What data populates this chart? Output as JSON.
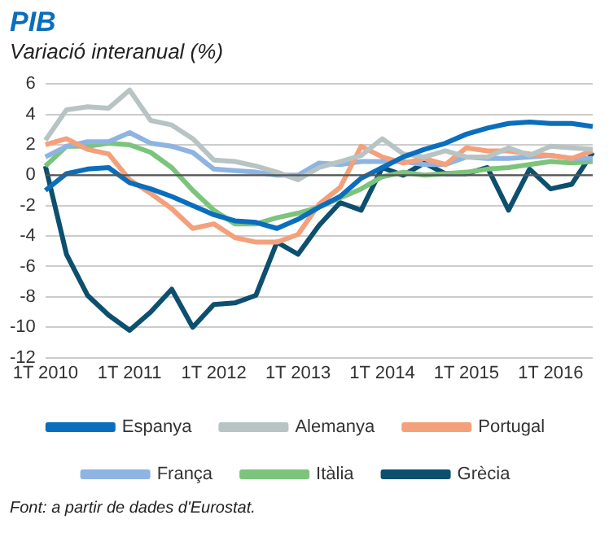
{
  "chart_data": {
    "type": "line",
    "title": "PIB",
    "subtitle": "Variació interanual (%)",
    "categories": [
      "1T 2010",
      null,
      null,
      null,
      "1T 2011",
      null,
      null,
      null,
      "1T 2012",
      null,
      null,
      null,
      "1T 2013",
      null,
      null,
      null,
      "1T 2014",
      null,
      null,
      null,
      "1T 2015",
      null,
      null,
      null,
      "1T 2016",
      null,
      null
    ],
    "series": [
      {
        "name": "Espanya",
        "color": "#0a6ebd",
        "values": [
          -1.0,
          0.1,
          0.4,
          0.5,
          -0.5,
          -0.9,
          -1.4,
          -2.0,
          -2.6,
          -3.0,
          -3.1,
          -3.5,
          -2.9,
          -2.1,
          -1.4,
          -0.2,
          0.5,
          1.2,
          1.7,
          2.1,
          2.7,
          3.1,
          3.4,
          3.5,
          3.4,
          3.4,
          3.2
        ]
      },
      {
        "name": "Alemanya",
        "color": "#b8c4c4",
        "values": [
          2.3,
          4.3,
          4.5,
          4.4,
          5.6,
          3.6,
          3.3,
          2.4,
          1.0,
          0.9,
          0.6,
          0.2,
          -0.3,
          0.5,
          0.9,
          1.3,
          2.4,
          1.4,
          1.2,
          1.6,
          1.2,
          1.2,
          1.8,
          1.3,
          1.9,
          1.8,
          1.7
        ]
      },
      {
        "name": "Portugal",
        "color": "#f4a07a",
        "values": [
          2.0,
          2.4,
          1.7,
          1.4,
          -0.3,
          -1.2,
          -2.2,
          -3.5,
          -3.2,
          -4.1,
          -4.4,
          -4.4,
          -3.9,
          -1.9,
          -0.8,
          1.9,
          1.2,
          0.8,
          1.1,
          0.7,
          1.8,
          1.6,
          1.6,
          1.4,
          1.3,
          1.1,
          1.6
        ]
      },
      {
        "name": "França",
        "color": "#8db4e2",
        "values": [
          1.2,
          1.9,
          2.2,
          2.2,
          2.8,
          2.1,
          1.9,
          1.5,
          0.4,
          0.3,
          0.2,
          0.0,
          0.0,
          0.8,
          0.7,
          0.9,
          0.9,
          0.9,
          0.7,
          0.7,
          1.2,
          1.1,
          1.1,
          1.2,
          1.3,
          1.1,
          1.1
        ]
      },
      {
        "name": "Itàlia",
        "color": "#7cc47c",
        "values": [
          0.6,
          1.9,
          1.9,
          2.1,
          2.0,
          1.5,
          0.5,
          -1.0,
          -2.3,
          -3.2,
          -3.2,
          -2.8,
          -2.5,
          -2.1,
          -1.5,
          -0.9,
          -0.1,
          0.2,
          0.0,
          0.1,
          0.2,
          0.4,
          0.5,
          0.7,
          0.9,
          0.8,
          0.9
        ]
      },
      {
        "name": "Grècia",
        "color": "#0d4f6e",
        "values": [
          0.6,
          -5.2,
          -7.9,
          -9.2,
          -10.2,
          -9.0,
          -7.5,
          -10.0,
          -8.5,
          -8.4,
          -7.9,
          -4.4,
          -5.2,
          -3.3,
          -1.8,
          -2.3,
          0.5,
          0.0,
          0.8,
          0.1,
          0.1,
          0.5,
          -2.3,
          0.4,
          -0.9,
          -0.6,
          1.5
        ]
      }
    ],
    "ylim": [
      -12,
      6
    ],
    "yticks": [
      -12,
      -10,
      -8,
      -6,
      -4,
      -2,
      0,
      2,
      4,
      6
    ],
    "grid": "y",
    "legend": "bottom",
    "marker": "none",
    "line_style": "solid",
    "ref_lines": [
      {
        "axis": "y",
        "value": 0,
        "color": "#555555"
      }
    ],
    "annotations": [
      "Font: a partir de dades d'Eurostat."
    ]
  }
}
